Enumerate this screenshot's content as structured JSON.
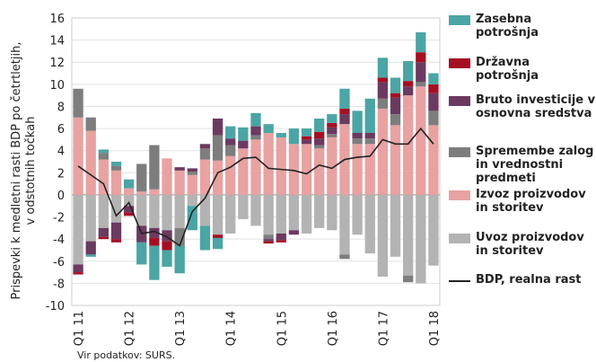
{
  "chart_data": {
    "type": "bar",
    "stacked": true,
    "ylabel": [
      "Prispevki k medletni rasti BDP po četrtletjih,",
      "v odstotnih točkah"
    ],
    "source": "Vir podatkov: SURS.",
    "categories": [
      "Q1 11",
      null,
      null,
      null,
      "Q1 12",
      null,
      null,
      null,
      "Q1 13",
      null,
      null,
      null,
      "Q1 14",
      null,
      null,
      null,
      "Q1 15",
      null,
      null,
      null,
      "Q1 16",
      null,
      null,
      null,
      "Q1 17",
      null,
      null,
      null,
      "Q1 18"
    ],
    "ylim": [
      -10,
      16
    ],
    "yticks": [
      -10,
      -8,
      -6,
      -4,
      -2,
      0,
      2,
      4,
      6,
      8,
      10,
      12,
      14,
      16
    ],
    "grid": true,
    "series": [
      {
        "name": "Zasebna potrošnja",
        "color": "#4ba5a4",
        "values": [
          0,
          -0.2,
          0.3,
          0.4,
          0.8,
          -2.0,
          -3.1,
          -1.5,
          -2.5,
          -2.2,
          -2.2,
          -1.0,
          1.1,
          1.2,
          1.2,
          0.8,
          0.4,
          1.4,
          0.7,
          1.2,
          0.8,
          1.8,
          2.0,
          3.1,
          1.8,
          1.4,
          1.8,
          1.8,
          1.0
        ]
      },
      {
        "name": "Državna potrošnja",
        "color": "#a60f22",
        "values": [
          -0.2,
          0,
          -0.2,
          -0.3,
          -0.3,
          0,
          -0.7,
          -0.8,
          0,
          0,
          0,
          -0.3,
          0,
          0,
          0,
          -0.2,
          -0.2,
          0,
          0.3,
          0.6,
          0.4,
          0.5,
          0,
          0,
          0.4,
          0.4,
          0.5,
          0.9,
          0.8
        ]
      },
      {
        "name": "Bruto investicije v osnovna sredstva",
        "color": "#6b3a60",
        "values": [
          -0.7,
          -1.2,
          -0.8,
          -1.5,
          -0.6,
          -1.5,
          -0.9,
          -1.0,
          0.3,
          0.3,
          0.4,
          1.5,
          0.6,
          0.7,
          0.8,
          -0.2,
          -0.6,
          -0.4,
          0.4,
          0.6,
          0.6,
          0.9,
          0.5,
          0.5,
          1.5,
          1.5,
          0.8,
          1.8,
          1.6
        ]
      },
      {
        "name": "Spremembe zalog in vrednostni predmeti",
        "color": "#7d7d7d",
        "values": [
          2.6,
          1.2,
          0.6,
          0.4,
          0,
          2.5,
          4.0,
          0,
          -1.6,
          0.3,
          1.0,
          2.3,
          1.0,
          0,
          0.4,
          -0.4,
          0,
          0,
          0,
          0.3,
          0.3,
          -0.4,
          0.5,
          0.5,
          0.9,
          1.0,
          -0.6,
          0.4,
          1.3
        ]
      },
      {
        "name": "Izvoz proizvodov in storitev",
        "color": "#e8a2a2",
        "values": [
          7.0,
          5.8,
          3.2,
          2.2,
          0.6,
          0.3,
          0.5,
          3.3,
          2.2,
          1.8,
          3.2,
          3.1,
          3.5,
          4.2,
          5.0,
          5.6,
          5.2,
          4.6,
          4.6,
          4.2,
          5.2,
          6.4,
          4.6,
          4.6,
          7.8,
          6.3,
          9.0,
          9.8,
          6.3
        ]
      },
      {
        "name": "Uvoz proizvodov in storitev",
        "color": "#b3b3b3",
        "values": [
          -6.3,
          -4.2,
          -3.0,
          -2.5,
          -1.0,
          -2.8,
          -3.0,
          -3.2,
          -3.0,
          -1.0,
          -2.8,
          -3.6,
          -3.5,
          -2.2,
          -2.8,
          -3.6,
          -3.5,
          -3.2,
          -3.5,
          -3.0,
          -3.2,
          -5.4,
          -3.6,
          -5.3,
          -7.4,
          -5.6,
          -7.3,
          -8.0,
          -6.4
        ]
      },
      {
        "name": "BDP, realna rast",
        "color": "#222222",
        "type": "line",
        "values": [
          2.6,
          1.8,
          1.0,
          -1.9,
          -0.7,
          -3.5,
          -3.3,
          -3.8,
          -4.6,
          -1.5,
          -0.3,
          2.0,
          2.5,
          3.3,
          3.4,
          2.4,
          2.3,
          2.2,
          1.9,
          2.7,
          2.4,
          3.2,
          3.4,
          3.5,
          5.0,
          4.6,
          4.6,
          6.0,
          4.6
        ]
      }
    ]
  }
}
